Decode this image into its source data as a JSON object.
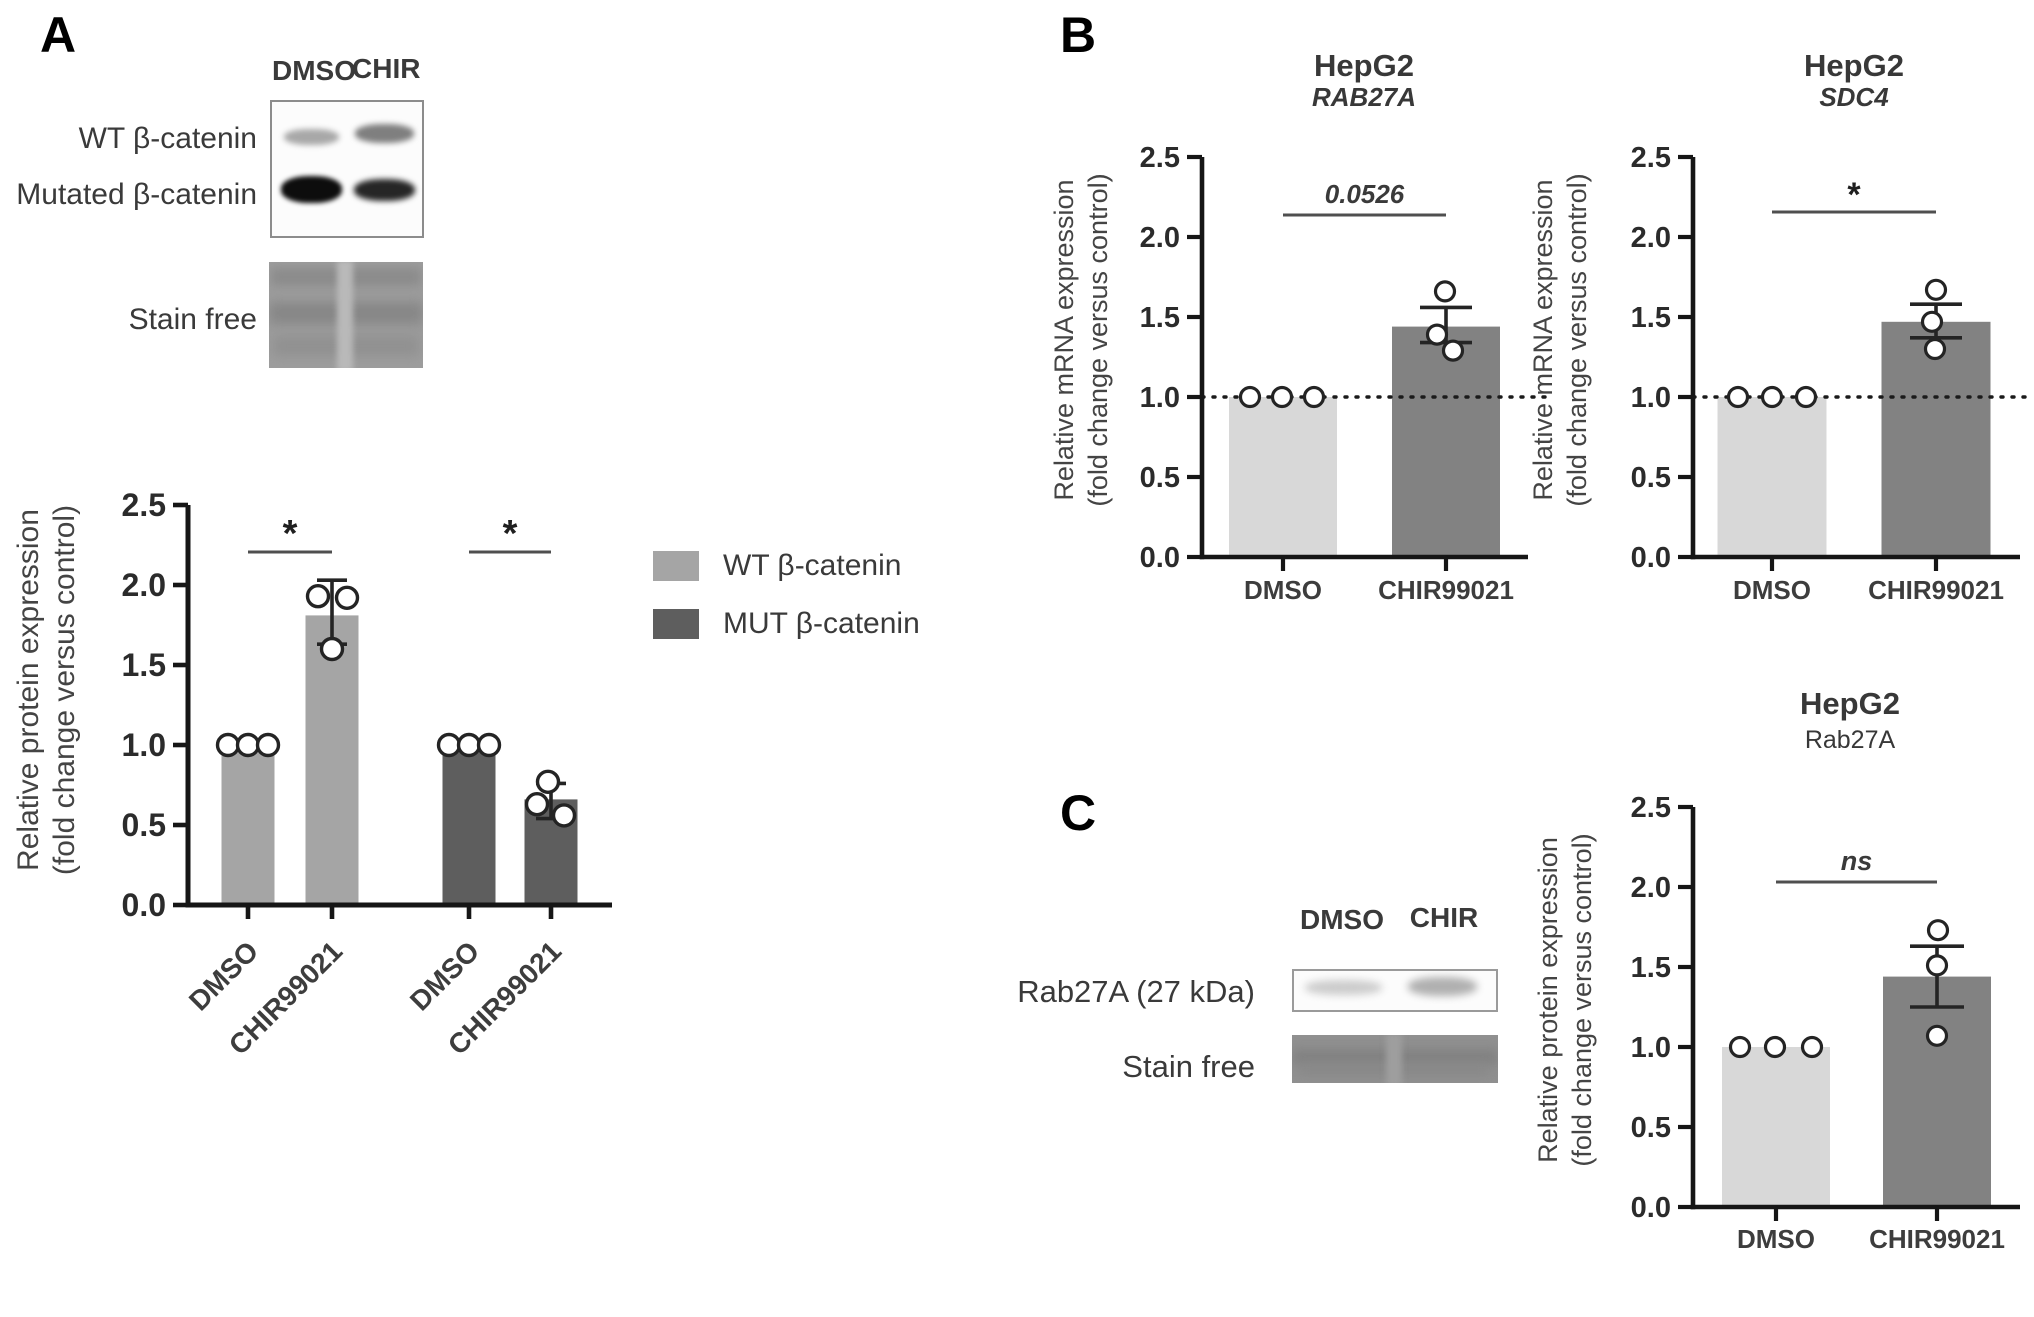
{
  "panels": {
    "a_label": "A",
    "b_label": "B",
    "c_label": "C"
  },
  "panel_a": {
    "blot": {
      "col_headers": [
        "DMSO",
        "CHIR"
      ],
      "row_labels": [
        "WT β-catenin",
        "Mutated β-catenin"
      ],
      "stain_label": "Stain free"
    },
    "legend": [
      {
        "label": "WT β-catenin",
        "color": "#a5a5a5"
      },
      {
        "label": "MUT β-catenin",
        "color": "#5e5e5e"
      }
    ]
  },
  "panel_c": {
    "blot": {
      "col_headers": [
        "DMSO",
        "CHIR"
      ],
      "row_labels": [
        "Rab27A (27 kDa)",
        "Stain free"
      ]
    }
  },
  "chart_data": [
    {
      "id": "a-protein-expression",
      "type": "bar",
      "title": "",
      "subtitle": "",
      "subtitle_italic": false,
      "ylabel_lines": [
        "Relative protein expression",
        "(fold change versus control)"
      ],
      "ylim": [
        0,
        2.5
      ],
      "ytick_step": 0.5,
      "categories": [
        "DMSO",
        "CHIR99021",
        "DMSO",
        "CHIR99021"
      ],
      "groups": [
        "WT β-catenin",
        "WT β-catenin",
        "MUT β-catenin",
        "MUT β-catenin"
      ],
      "values": [
        1.0,
        1.81,
        1.0,
        0.66
      ],
      "errors": [
        null,
        [
          1.63,
          2.03
        ],
        null,
        [
          0.54,
          0.76
        ]
      ],
      "points": [
        [
          1.0,
          1.0,
          1.0
        ],
        [
          1.93,
          1.92,
          1.6
        ],
        [
          1.0,
          1.0,
          1.0
        ],
        [
          0.77,
          0.63,
          0.56
        ]
      ],
      "bar_colors": [
        "#a5a5a5",
        "#a5a5a5",
        "#5e5e5e",
        "#5e5e5e"
      ],
      "significance": [
        {
          "pair": [
            0,
            1
          ],
          "label": "*",
          "italic": false
        },
        {
          "pair": [
            2,
            3
          ],
          "label": "*",
          "italic": false
        }
      ],
      "ref_line": null,
      "legend_position": "right",
      "grid": false
    },
    {
      "id": "b-hepg2-rab27a-mrna",
      "type": "bar",
      "title": "HepG2",
      "subtitle": "RAB27A",
      "subtitle_italic": true,
      "ylabel_lines": [
        "Relative mRNA expression",
        "(fold change versus control)"
      ],
      "ylim": [
        0,
        2.5
      ],
      "ytick_step": 0.5,
      "categories": [
        "DMSO",
        "CHIR99021"
      ],
      "values": [
        1.0,
        1.44
      ],
      "errors": [
        null,
        [
          1.34,
          1.56
        ]
      ],
      "points": [
        [
          1.0,
          1.0,
          1.0
        ],
        [
          1.66,
          1.39,
          1.29
        ]
      ],
      "bar_colors": [
        "#d8d8d8",
        "#828282"
      ],
      "significance": [
        {
          "pair": [
            0,
            1
          ],
          "label": "0.0526",
          "italic": true
        }
      ],
      "ref_line": 1.0,
      "grid": false
    },
    {
      "id": "b-hepg2-sdc4-mrna",
      "type": "bar",
      "title": "HepG2",
      "subtitle": "SDC4",
      "subtitle_italic": true,
      "ylabel_lines": [
        "Relative mRNA expression",
        "(fold change versus control)"
      ],
      "ylim": [
        0,
        2.5
      ],
      "ytick_step": 0.5,
      "categories": [
        "DMSO",
        "CHIR99021"
      ],
      "values": [
        1.0,
        1.47
      ],
      "errors": [
        null,
        [
          1.37,
          1.58
        ]
      ],
      "points": [
        [
          1.0,
          1.0,
          1.0
        ],
        [
          1.67,
          1.47,
          1.3
        ]
      ],
      "bar_colors": [
        "#d8d8d8",
        "#828282"
      ],
      "significance": [
        {
          "pair": [
            0,
            1
          ],
          "label": "*",
          "italic": false
        }
      ],
      "ref_line": 1.0,
      "grid": false
    },
    {
      "id": "c-hepg2-rab27a-protein",
      "type": "bar",
      "title": "HepG2",
      "subtitle": "Rab27A",
      "subtitle_italic": false,
      "ylabel_lines": [
        "Relative protein expression",
        "(fold change versus control)"
      ],
      "ylim": [
        0,
        2.5
      ],
      "ytick_step": 0.5,
      "categories": [
        "DMSO",
        "CHIR99021"
      ],
      "values": [
        1.0,
        1.44
      ],
      "errors": [
        null,
        [
          1.25,
          1.63
        ]
      ],
      "points": [
        [
          1.0,
          1.0,
          1.0
        ],
        [
          1.73,
          1.51,
          1.07
        ]
      ],
      "bar_colors": [
        "#d8d8d8",
        "#828282"
      ],
      "significance": [
        {
          "pair": [
            0,
            1
          ],
          "label": "ns",
          "italic": true
        }
      ],
      "ref_line": null,
      "grid": false
    }
  ]
}
